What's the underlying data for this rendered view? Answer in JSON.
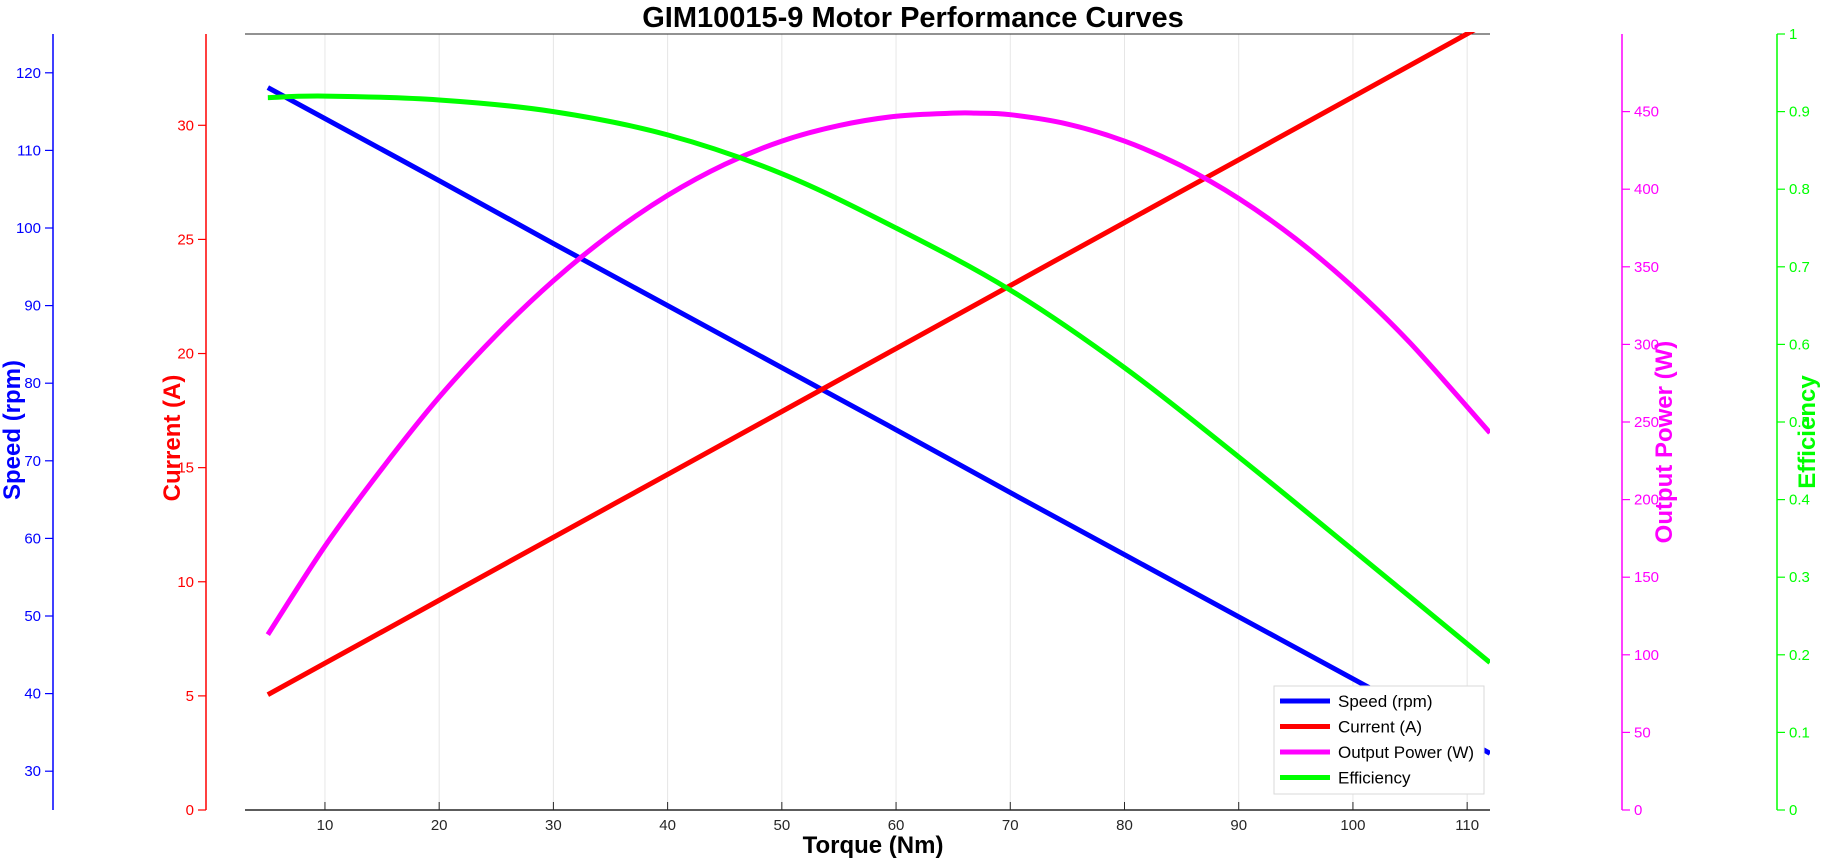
{
  "chart_data": {
    "type": "line",
    "title": "GIM10015-9 Motor Performance Curves",
    "xlabel": "Torque (Nm)",
    "xlim": [
      3,
      112
    ],
    "xticks": [
      10,
      20,
      30,
      40,
      50,
      60,
      70,
      80,
      90,
      100,
      110
    ],
    "grid": "vertical",
    "legend_position": "bottom-right",
    "axes": [
      {
        "id": "speed",
        "label": "Speed (rpm)",
        "side": "left-outer",
        "color": "#0000ff",
        "lim": [
          25,
          125
        ],
        "ticks": [
          30,
          40,
          50,
          60,
          70,
          80,
          90,
          100,
          110,
          120
        ]
      },
      {
        "id": "current",
        "label": "Current (A)",
        "side": "left-inner",
        "color": "#ff0000",
        "lim": [
          0,
          34
        ],
        "ticks": [
          0,
          5,
          10,
          15,
          20,
          25,
          30
        ]
      },
      {
        "id": "power",
        "label": "Output Power (W)",
        "side": "right-inner",
        "color": "#ff00ff",
        "lim": [
          0,
          500
        ],
        "ticks": [
          0,
          50,
          100,
          150,
          200,
          250,
          300,
          350,
          400,
          450
        ]
      },
      {
        "id": "efficiency",
        "label": "Efficiency",
        "side": "right-outer",
        "color": "#00ff00",
        "lim": [
          0,
          1
        ],
        "ticks": [
          0,
          0.1,
          0.2,
          0.3,
          0.4,
          0.5,
          0.6,
          0.7,
          0.8,
          0.9,
          1
        ]
      }
    ],
    "series": [
      {
        "name": "Speed (rpm)",
        "axis": "speed",
        "color": "#0000ff",
        "x": [
          5,
          10,
          20,
          30,
          40,
          50,
          60,
          70,
          80,
          90,
          100,
          112
        ],
        "y": [
          118.1,
          114.1,
          106.1,
          98.0,
          90.0,
          82.0,
          74.0,
          65.9,
          57.9,
          49.9,
          41.9,
          32.3
        ]
      },
      {
        "name": "Current (A)",
        "axis": "current",
        "color": "#ff0000",
        "x": [
          5,
          10,
          20,
          30,
          40,
          50,
          60,
          70,
          80,
          90,
          100,
          112
        ],
        "y": [
          5.05,
          6.43,
          9.19,
          11.95,
          14.7,
          17.46,
          20.22,
          22.98,
          25.74,
          28.49,
          31.25,
          34.56
        ]
      },
      {
        "name": "Output Power (W)",
        "axis": "power",
        "color": "#ff00ff",
        "x": [
          5,
          10,
          15,
          20,
          25,
          30,
          35,
          40,
          45,
          50,
          55,
          60,
          65,
          67,
          70,
          75,
          80,
          85,
          90,
          95,
          100,
          105,
          112
        ],
        "y": [
          113,
          170,
          220,
          266,
          306,
          341,
          371,
          396,
          416,
          431,
          441,
          447,
          449,
          449,
          448,
          442,
          431,
          415,
          394,
          368,
          337,
          301,
          243
        ]
      },
      {
        "name": "Efficiency",
        "axis": "efficiency",
        "color": "#00ff00",
        "x": [
          5,
          10,
          20,
          30,
          40,
          50,
          60,
          70,
          80,
          90,
          100,
          112
        ],
        "y": [
          0.918,
          0.92,
          0.915,
          0.9,
          0.87,
          0.82,
          0.75,
          0.67,
          0.57,
          0.455,
          0.335,
          0.19
        ]
      }
    ]
  }
}
